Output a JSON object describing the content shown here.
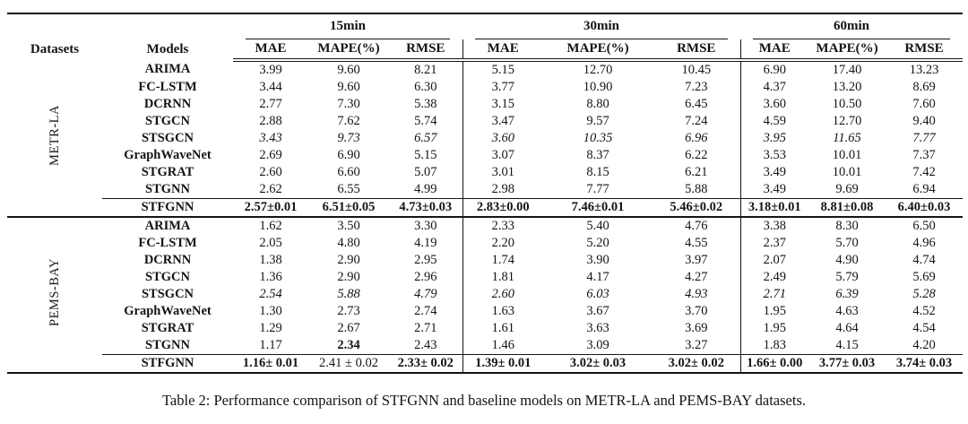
{
  "table": {
    "caption": "Table 2: Performance comparison of STFGNN and baseline models on METR-LA and PEMS-BAY datasets.",
    "headers": {
      "datasets": "Datasets",
      "models": "Models",
      "groups": [
        "15min",
        "30min",
        "60min"
      ],
      "metrics": [
        "MAE",
        "MAPE(%)",
        "RMSE"
      ]
    },
    "sections": [
      {
        "dataset": "METR-LA",
        "rows": [
          {
            "model": "ARIMA",
            "values": [
              "3.99",
              "9.60",
              "8.21",
              "5.15",
              "12.70",
              "10.45",
              "6.90",
              "17.40",
              "13.23"
            ]
          },
          {
            "model": "FC-LSTM",
            "values": [
              "3.44",
              "9.60",
              "6.30",
              "3.77",
              "10.90",
              "7.23",
              "4.37",
              "13.20",
              "8.69"
            ]
          },
          {
            "model": "DCRNN",
            "values": [
              "2.77",
              "7.30",
              "5.38",
              "3.15",
              "8.80",
              "6.45",
              "3.60",
              "10.50",
              "7.60"
            ]
          },
          {
            "model": "STGCN",
            "values": [
              "2.88",
              "7.62",
              "5.74",
              "3.47",
              "9.57",
              "7.24",
              "4.59",
              "12.70",
              "9.40"
            ]
          },
          {
            "model": "STSGCN",
            "italic": true,
            "values": [
              "3.43",
              "9.73",
              "6.57",
              "3.60",
              "10.35",
              "6.96",
              "3.95",
              "11.65",
              "7.77"
            ]
          },
          {
            "model": "GraphWaveNet",
            "values": [
              "2.69",
              "6.90",
              "5.15",
              "3.07",
              "8.37",
              "6.22",
              "3.53",
              "10.01",
              "7.37"
            ]
          },
          {
            "model": "STGRAT",
            "values": [
              "2.60",
              "6.60",
              "5.07",
              "3.01",
              "8.15",
              "6.21",
              "3.49",
              "10.01",
              "7.42"
            ]
          },
          {
            "model": "STGNN",
            "values": [
              "2.62",
              "6.55",
              "4.99",
              "2.98",
              "7.77",
              "5.88",
              "3.49",
              "9.69",
              "6.94"
            ]
          },
          {
            "model": "STFGNN",
            "best": true,
            "values": [
              "2.57±0.01",
              "6.51±0.05",
              "4.73±0.03",
              "2.83±0.00",
              "7.46±0.01",
              "5.46±0.02",
              "3.18±0.01",
              "8.81±0.08",
              "6.40±0.03"
            ]
          }
        ]
      },
      {
        "dataset": "PEMS-BAY",
        "rows": [
          {
            "model": "ARIMA",
            "values": [
              "1.62",
              "3.50",
              "3.30",
              "2.33",
              "5.40",
              "4.76",
              "3.38",
              "8.30",
              "6.50"
            ]
          },
          {
            "model": "FC-LSTM",
            "values": [
              "2.05",
              "4.80",
              "4.19",
              "2.20",
              "5.20",
              "4.55",
              "2.37",
              "5.70",
              "4.96"
            ]
          },
          {
            "model": "DCRNN",
            "values": [
              "1.38",
              "2.90",
              "2.95",
              "1.74",
              "3.90",
              "3.97",
              "2.07",
              "4.90",
              "4.74"
            ]
          },
          {
            "model": "STGCN",
            "values": [
              "1.36",
              "2.90",
              "2.96",
              "1.81",
              "4.17",
              "4.27",
              "2.49",
              "5.79",
              "5.69"
            ]
          },
          {
            "model": "STSGCN",
            "italic": true,
            "values": [
              "2.54",
              "5.88",
              "4.79",
              "2.60",
              "6.03",
              "4.93",
              "2.71",
              "6.39",
              "5.28"
            ]
          },
          {
            "model": "GraphWaveNet",
            "values": [
              "1.30",
              "2.73",
              "2.74",
              "1.63",
              "3.67",
              "3.70",
              "1.95",
              "4.63",
              "4.52"
            ]
          },
          {
            "model": "STGRAT",
            "values": [
              "1.29",
              "2.67",
              "2.71",
              "1.61",
              "3.63",
              "3.69",
              "1.95",
              "4.64",
              "4.54"
            ]
          },
          {
            "model": "STGNN",
            "bold_cells": [
              1
            ],
            "values": [
              "1.17",
              "2.34",
              "2.43",
              "1.46",
              "3.09",
              "3.27",
              "1.83",
              "4.15",
              "4.20"
            ]
          },
          {
            "model": "STFGNN",
            "best": true,
            "regular_cells": [
              1
            ],
            "values": [
              "1.16± 0.01",
              "2.41 ± 0.02",
              "2.33± 0.02",
              "1.39± 0.01",
              "3.02± 0.03",
              "3.02± 0.02",
              "1.66± 0.00",
              "3.77± 0.03",
              "3.74± 0.03"
            ]
          }
        ]
      }
    ]
  }
}
